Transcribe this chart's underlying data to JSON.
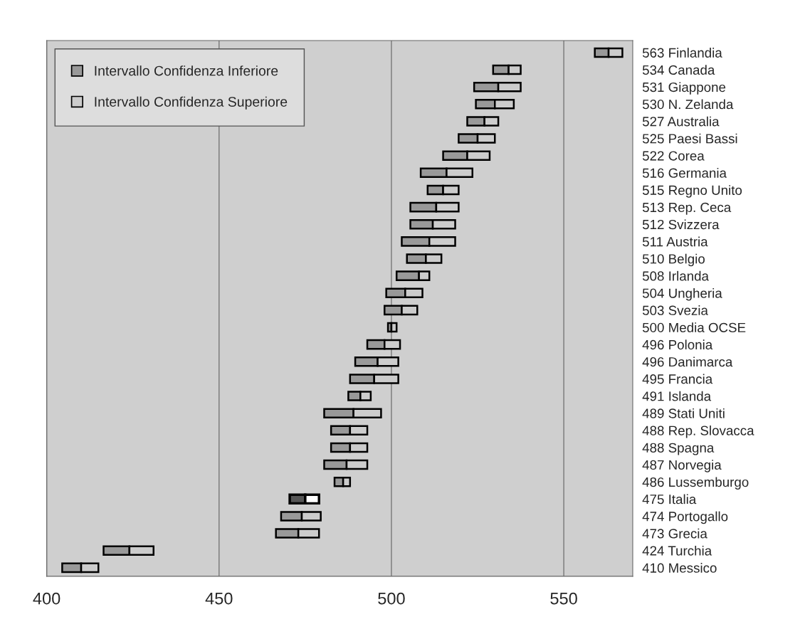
{
  "chart_data": {
    "type": "bar",
    "orientation": "horizontal",
    "categories": [
      "563 Finlandia",
      "534 Canada",
      "531 Giappone",
      "530 N. Zelanda",
      "527 Australia",
      "525 Paesi Bassi",
      "522 Corea",
      "516 Germania",
      "515 Regno Unito",
      "513 Rep. Ceca",
      "512 Svizzera",
      "511 Austria",
      "510 Belgio",
      "508 Irlanda",
      "504 Ungheria",
      "503 Svezia",
      "500 Media OCSE",
      "496 Polonia",
      "496 Danimarca",
      "495 Francia",
      "491 Islanda",
      "489 Stati Uniti",
      "488 Rep. Slovacca",
      "488 Spagna",
      "487 Norvegia",
      "486 Lussemburgo",
      "475 Italia",
      "474 Portogallo",
      "473 Grecia",
      "424 Turchia",
      "410 Messico"
    ],
    "series": [
      {
        "name": "Intervallo Confidenza Inferiore",
        "color": "#999999",
        "colors": [
          "#999999",
          "#999999",
          "#999999",
          "#999999",
          "#999999",
          "#999999",
          "#999999",
          "#999999",
          "#999999",
          "#999999",
          "#999999",
          "#999999",
          "#999999",
          "#999999",
          "#999999",
          "#999999",
          "#999999",
          "#999999",
          "#999999",
          "#999999",
          "#999999",
          "#999999",
          "#999999",
          "#999999",
          "#999999",
          "#999999",
          "#555555",
          "#999999",
          "#999999",
          "#999999",
          "#999999"
        ],
        "base": [
          559,
          529.5,
          524,
          524.5,
          522,
          519.5,
          515,
          508.5,
          510.5,
          505.5,
          505.5,
          503,
          504.5,
          501.5,
          498.5,
          498,
          499,
          493,
          489.5,
          488,
          487.5,
          480.5,
          482.5,
          482.5,
          480.5,
          483.5,
          470.5,
          468,
          466.5,
          416.5,
          404.5
        ],
        "values": [
          4,
          4.5,
          7,
          5.5,
          5,
          5.5,
          7,
          7.5,
          4.5,
          7.5,
          6.5,
          8,
          5.5,
          6.5,
          5.5,
          5,
          1,
          5,
          6.5,
          7,
          3.5,
          8.5,
          5.5,
          5.5,
          6.5,
          2.5,
          4.5,
          6,
          6.5,
          7.5,
          5.5
        ]
      },
      {
        "name": "Intervallo Confidenza Superiore",
        "color": "#cccccc",
        "colors": [
          "#cccccc",
          "#cccccc",
          "#cccccc",
          "#cccccc",
          "#cccccc",
          "#cccccc",
          "#cccccc",
          "#cccccc",
          "#cccccc",
          "#cccccc",
          "#cccccc",
          "#cccccc",
          "#cccccc",
          "#cccccc",
          "#cccccc",
          "#cccccc",
          "#cccccc",
          "#cccccc",
          "#cccccc",
          "#cccccc",
          "#cccccc",
          "#cccccc",
          "#cccccc",
          "#cccccc",
          "#cccccc",
          "#cccccc",
          "#ffffff",
          "#cccccc",
          "#cccccc",
          "#cccccc",
          "#cccccc"
        ],
        "base": [
          563,
          534,
          531,
          530,
          527,
          525,
          522,
          516,
          515,
          513,
          512,
          511,
          510,
          508,
          504,
          503,
          500,
          498,
          496,
          495,
          491,
          489,
          488,
          488,
          487,
          486,
          475,
          474,
          473,
          424,
          410
        ],
        "values": [
          4,
          3.5,
          6.5,
          5.5,
          4,
          5,
          6.5,
          7.5,
          4.5,
          6.5,
          6.5,
          7.5,
          4.5,
          3,
          5,
          4.5,
          1.5,
          4.5,
          6,
          7,
          3,
          8,
          5,
          5,
          6,
          2,
          4,
          5.5,
          6,
          7,
          5
        ]
      }
    ],
    "xlim": [
      400,
      570
    ],
    "xticks": [
      400,
      450,
      500,
      550
    ],
    "grid": "x",
    "legend": "top left"
  }
}
